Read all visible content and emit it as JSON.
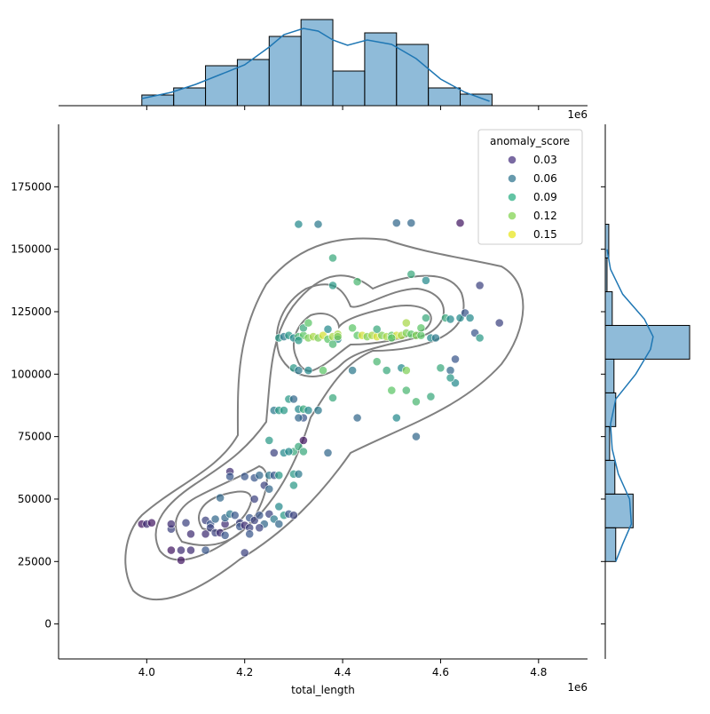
{
  "chart_data": {
    "type": "scatter",
    "subtype": "jointplot",
    "xlabel": "total_length",
    "ylabel": "",
    "x_offset_label": "1e6",
    "xlim": [
      3.82,
      4.9
    ],
    "ylim": [
      -14000,
      200000
    ],
    "x_ticks": [
      4.0,
      4.2,
      4.4,
      4.6,
      4.8
    ],
    "x_tick_labels": [
      "4.0",
      "4.2",
      "4.4",
      "4.6",
      "4.8"
    ],
    "y_ticks": [
      0,
      25000,
      50000,
      75000,
      100000,
      125000,
      150000,
      175000
    ],
    "y_tick_labels": [
      "0",
      "25000",
      "50000",
      "75000",
      "100000",
      "125000",
      "150000",
      "175000"
    ],
    "grid": false,
    "legend": {
      "title": "anomaly_score",
      "placement": "top-right",
      "entries": [
        {
          "label": "0.03",
          "color": "#46317e"
        },
        {
          "label": "0.06",
          "color": "#2c738e"
        },
        {
          "label": "0.09",
          "color": "#27ad81"
        },
        {
          "label": "0.12",
          "color": "#7fd34e"
        },
        {
          "label": "0.15",
          "color": "#e8e419"
        }
      ]
    },
    "hue_range": [
      0.01,
      0.16
    ],
    "points": [
      [
        3.99,
        40000,
        0.02
      ],
      [
        4.0,
        40000,
        0.03
      ],
      [
        4.01,
        40500,
        0.02
      ],
      [
        4.05,
        38000,
        0.04
      ],
      [
        4.05,
        40000,
        0.03
      ],
      [
        4.05,
        29500,
        0.02
      ],
      [
        4.07,
        25500,
        0.02
      ],
      [
        4.07,
        29500,
        0.03
      ],
      [
        4.09,
        29500,
        0.03
      ],
      [
        4.08,
        40500,
        0.04
      ],
      [
        4.09,
        36000,
        0.03
      ],
      [
        4.12,
        41500,
        0.04
      ],
      [
        4.13,
        40000,
        0.05
      ],
      [
        4.12,
        36000,
        0.03
      ],
      [
        4.13,
        38500,
        0.04
      ],
      [
        4.12,
        29500,
        0.05
      ],
      [
        4.14,
        42000,
        0.06
      ],
      [
        4.14,
        36500,
        0.04
      ],
      [
        4.15,
        36500,
        0.03
      ],
      [
        4.16,
        35500,
        0.05
      ],
      [
        4.16,
        40000,
        0.03
      ],
      [
        4.16,
        42500,
        0.06
      ],
      [
        4.17,
        44000,
        0.07
      ],
      [
        4.18,
        43500,
        0.05
      ],
      [
        4.19,
        40500,
        0.04
      ],
      [
        4.19,
        39000,
        0.05
      ],
      [
        4.2,
        39500,
        0.03
      ],
      [
        4.21,
        42500,
        0.05
      ],
      [
        4.21,
        38500,
        0.04
      ],
      [
        4.21,
        36000,
        0.05
      ],
      [
        4.22,
        41500,
        0.04
      ],
      [
        4.23,
        43500,
        0.05
      ],
      [
        4.24,
        40000,
        0.06
      ],
      [
        4.23,
        38500,
        0.04
      ],
      [
        4.25,
        44000,
        0.04
      ],
      [
        4.26,
        42000,
        0.07
      ],
      [
        4.27,
        40000,
        0.06
      ],
      [
        4.28,
        43500,
        0.09
      ],
      [
        4.29,
        44000,
        0.05
      ],
      [
        4.3,
        43500,
        0.04
      ],
      [
        4.22,
        58500,
        0.05
      ],
      [
        4.23,
        59500,
        0.06
      ],
      [
        4.24,
        55500,
        0.04
      ],
      [
        4.25,
        59500,
        0.07
      ],
      [
        4.26,
        59500,
        0.05
      ],
      [
        4.27,
        59500,
        0.09
      ],
      [
        4.17,
        61000,
        0.03
      ],
      [
        4.17,
        59000,
        0.05
      ],
      [
        4.2,
        59000,
        0.05
      ],
      [
        4.2,
        28500,
        0.04
      ],
      [
        4.15,
        50500,
        0.06
      ],
      [
        4.22,
        50000,
        0.04
      ],
      [
        4.25,
        54000,
        0.06
      ],
      [
        4.27,
        47000,
        0.08
      ],
      [
        4.28,
        68500,
        0.08
      ],
      [
        4.26,
        68500,
        0.04
      ],
      [
        4.25,
        73500,
        0.09
      ],
      [
        4.3,
        69000,
        0.1
      ],
      [
        4.31,
        71000,
        0.1
      ],
      [
        4.32,
        69000,
        0.1
      ],
      [
        4.32,
        73500,
        0.02
      ],
      [
        4.3,
        60000,
        0.09
      ],
      [
        4.3,
        55500,
        0.09
      ],
      [
        4.31,
        60000,
        0.07
      ],
      [
        4.29,
        69000,
        0.08
      ],
      [
        4.26,
        85500,
        0.07
      ],
      [
        4.27,
        85500,
        0.09
      ],
      [
        4.28,
        85500,
        0.09
      ],
      [
        4.29,
        90000,
        0.09
      ],
      [
        4.3,
        90000,
        0.06
      ],
      [
        4.31,
        86000,
        0.08
      ],
      [
        4.32,
        86000,
        0.1
      ],
      [
        4.32,
        82500,
        0.05
      ],
      [
        4.33,
        85500,
        0.08
      ],
      [
        4.35,
        85500,
        0.07
      ],
      [
        4.31,
        82500,
        0.06
      ],
      [
        4.37,
        68500,
        0.06
      ],
      [
        4.38,
        90500,
        0.1
      ],
      [
        4.43,
        82500,
        0.06
      ],
      [
        4.51,
        82500,
        0.08
      ],
      [
        4.27,
        114500,
        0.09
      ],
      [
        4.28,
        115000,
        0.07
      ],
      [
        4.29,
        115500,
        0.09
      ],
      [
        4.3,
        114500,
        0.08
      ],
      [
        4.31,
        115000,
        0.11
      ],
      [
        4.32,
        115500,
        0.12
      ],
      [
        4.33,
        114500,
        0.13
      ],
      [
        4.34,
        115000,
        0.14
      ],
      [
        4.35,
        114500,
        0.13
      ],
      [
        4.36,
        115500,
        0.15
      ],
      [
        4.37,
        114000,
        0.12
      ],
      [
        4.38,
        115000,
        0.14
      ],
      [
        4.39,
        116000,
        0.14
      ],
      [
        4.39,
        114000,
        0.08
      ],
      [
        4.31,
        113500,
        0.09
      ],
      [
        4.32,
        118500,
        0.1
      ],
      [
        4.33,
        120500,
        0.12
      ],
      [
        4.37,
        118000,
        0.08
      ],
      [
        4.38,
        112000,
        0.11
      ],
      [
        4.39,
        115000,
        0.13
      ],
      [
        4.43,
        115500,
        0.12
      ],
      [
        4.44,
        115500,
        0.15
      ],
      [
        4.45,
        115000,
        0.13
      ],
      [
        4.46,
        115500,
        0.14
      ],
      [
        4.47,
        115000,
        0.15
      ],
      [
        4.48,
        115500,
        0.13
      ],
      [
        4.49,
        115000,
        0.14
      ],
      [
        4.5,
        115500,
        0.12
      ],
      [
        4.51,
        115500,
        0.15
      ],
      [
        4.52,
        115500,
        0.14
      ],
      [
        4.53,
        116500,
        0.13
      ],
      [
        4.54,
        116000,
        0.12
      ],
      [
        4.55,
        115500,
        0.13
      ],
      [
        4.56,
        115500,
        0.12
      ],
      [
        4.58,
        114500,
        0.08
      ],
      [
        4.42,
        118500,
        0.12
      ],
      [
        4.47,
        118000,
        0.1
      ],
      [
        4.5,
        114500,
        0.12
      ],
      [
        4.53,
        120500,
        0.14
      ],
      [
        4.56,
        118500,
        0.12
      ],
      [
        4.57,
        122500,
        0.1
      ],
      [
        4.59,
        114500,
        0.07
      ],
      [
        4.61,
        122500,
        0.1
      ],
      [
        4.62,
        122000,
        0.08
      ],
      [
        4.64,
        122500,
        0.08
      ],
      [
        4.65,
        124500,
        0.05
      ],
      [
        4.66,
        122500,
        0.08
      ],
      [
        4.67,
        116500,
        0.05
      ],
      [
        4.68,
        114500,
        0.09
      ],
      [
        4.72,
        120500,
        0.04
      ],
      [
        4.3,
        102500,
        0.09
      ],
      [
        4.31,
        101500,
        0.07
      ],
      [
        4.33,
        101500,
        0.08
      ],
      [
        4.36,
        101500,
        0.12
      ],
      [
        4.42,
        101500,
        0.07
      ],
      [
        4.49,
        101500,
        0.1
      ],
      [
        4.52,
        102500,
        0.08
      ],
      [
        4.53,
        101500,
        0.13
      ],
      [
        4.47,
        105000,
        0.11
      ],
      [
        4.6,
        102500,
        0.1
      ],
      [
        4.62,
        101500,
        0.06
      ],
      [
        4.63,
        106000,
        0.05
      ],
      [
        4.63,
        96500,
        0.08
      ],
      [
        4.62,
        98500,
        0.09
      ],
      [
        4.5,
        93500,
        0.12
      ],
      [
        4.53,
        93500,
        0.11
      ],
      [
        4.55,
        89000,
        0.11
      ],
      [
        4.58,
        91000,
        0.1
      ],
      [
        4.38,
        135500,
        0.09
      ],
      [
        4.38,
        146500,
        0.1
      ],
      [
        4.43,
        137000,
        0.11
      ],
      [
        4.54,
        140000,
        0.1
      ],
      [
        4.57,
        137500,
        0.08
      ],
      [
        4.68,
        135500,
        0.04
      ],
      [
        4.55,
        75000,
        0.06
      ],
      [
        4.31,
        160000,
        0.08
      ],
      [
        4.35,
        160000,
        0.07
      ],
      [
        4.51,
        160500,
        0.06
      ],
      [
        4.54,
        160500,
        0.06
      ],
      [
        4.64,
        160500,
        0.02
      ]
    ],
    "marginal_x_hist": {
      "bin_edges": [
        3.99,
        4.055,
        4.12,
        4.185,
        4.25,
        4.315,
        4.38,
        4.445,
        4.51,
        4.575,
        4.64,
        4.705
      ],
      "heights": [
        0.12,
        0.2,
        0.45,
        0.52,
        0.78,
        0.97,
        0.39,
        0.82,
        0.69,
        0.2,
        0.13
      ]
    },
    "marginal_x_kde": [
      [
        3.99,
        0.08
      ],
      [
        4.05,
        0.15
      ],
      [
        4.1,
        0.24
      ],
      [
        4.15,
        0.35
      ],
      [
        4.2,
        0.46
      ],
      [
        4.25,
        0.66
      ],
      [
        4.28,
        0.8
      ],
      [
        4.32,
        0.87
      ],
      [
        4.35,
        0.84
      ],
      [
        4.38,
        0.74
      ],
      [
        4.41,
        0.68
      ],
      [
        4.45,
        0.74
      ],
      [
        4.5,
        0.69
      ],
      [
        4.55,
        0.53
      ],
      [
        4.6,
        0.3
      ],
      [
        4.65,
        0.15
      ],
      [
        4.7,
        0.05
      ]
    ],
    "marginal_y_hist": {
      "bin_edges": [
        25000,
        38500,
        52000,
        65500,
        79000,
        92500,
        106000,
        119500,
        133000,
        146500,
        160000
      ],
      "widths": [
        0.12,
        0.32,
        0.11,
        0.05,
        0.12,
        0.1,
        0.97,
        0.08,
        0.02,
        0.04
      ]
    },
    "marginal_y_kde": [
      [
        25000,
        0.12
      ],
      [
        32000,
        0.2
      ],
      [
        40000,
        0.3
      ],
      [
        50000,
        0.28
      ],
      [
        60000,
        0.15
      ],
      [
        70000,
        0.08
      ],
      [
        80000,
        0.06
      ],
      [
        90000,
        0.12
      ],
      [
        100000,
        0.35
      ],
      [
        110000,
        0.52
      ],
      [
        115000,
        0.55
      ],
      [
        122000,
        0.45
      ],
      [
        132000,
        0.2
      ],
      [
        142000,
        0.06
      ],
      [
        150000,
        0.02
      ]
    ]
  }
}
